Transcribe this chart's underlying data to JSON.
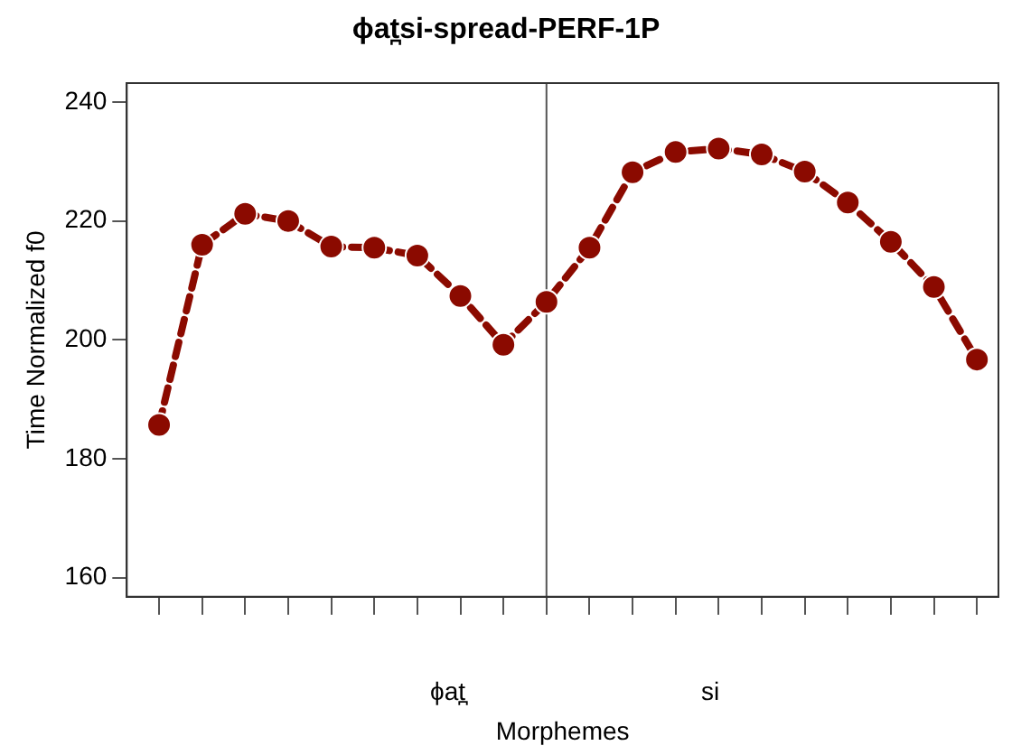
{
  "chart_data": {
    "type": "line",
    "title": "ϕat̪si-spread-PERF-1P",
    "xlabel": "Morphemes",
    "ylabel": "Time Normalized f0",
    "categories": [
      null,
      null,
      null,
      null,
      null,
      null,
      null,
      null,
      null,
      null,
      null,
      null,
      null,
      null,
      null,
      null,
      null,
      null,
      null,
      null
    ],
    "series": [
      {
        "color": "#8b0a00",
        "values": [
          185.7,
          216.0,
          221.2,
          220.0,
          215.7,
          215.5,
          214.2,
          207.4,
          199.2,
          206.4,
          215.5,
          228.2,
          231.6,
          232.2,
          231.2,
          228.3,
          223.1,
          216.5,
          208.9,
          196.7
        ]
      }
    ],
    "ylim": [
      156.8,
      243.2
    ],
    "yticks": [
      160,
      180,
      200,
      220,
      240
    ],
    "annotations": [
      "ϕat̪",
      "si"
    ],
    "grid": false,
    "legend": false,
    "marker": "circle",
    "line_style": "dashed"
  }
}
